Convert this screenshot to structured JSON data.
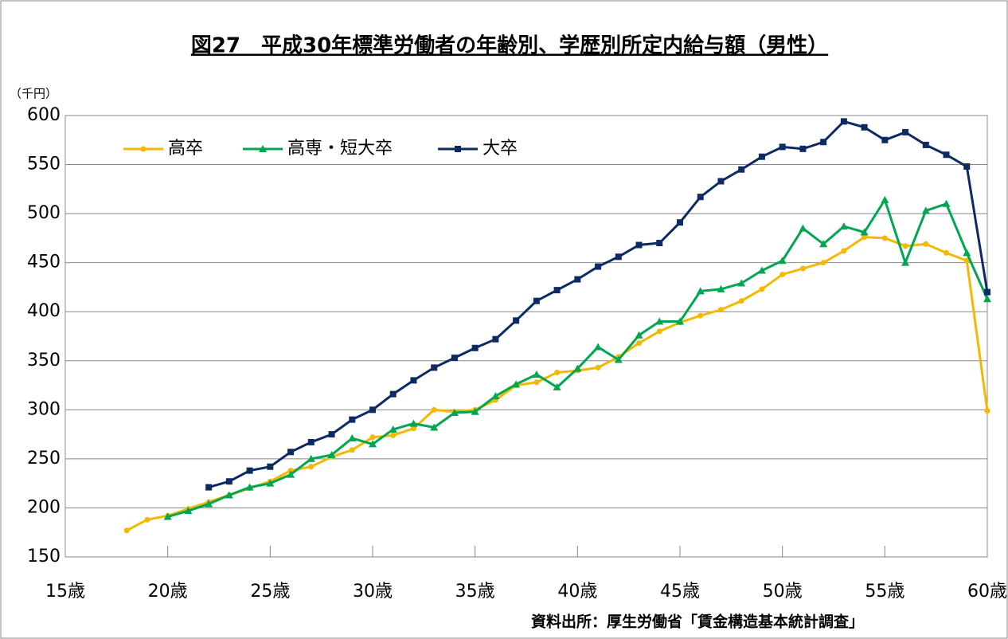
{
  "chart_data": {
    "type": "line",
    "title": "図27　平成30年標準労働者の年齢別、学歴別所定内給与額（男性）",
    "y_unit": "（千円）",
    "source": "資料出所：厚生労働省「賃金構造基本統計調査」",
    "x": [
      18,
      19,
      20,
      21,
      22,
      23,
      24,
      25,
      26,
      27,
      28,
      29,
      30,
      31,
      32,
      33,
      34,
      35,
      36,
      37,
      38,
      39,
      40,
      41,
      42,
      43,
      44,
      45,
      46,
      47,
      48,
      49,
      50,
      51,
      52,
      53,
      54,
      55,
      56,
      57,
      58,
      59,
      60
    ],
    "series": [
      {
        "name": "高卒",
        "color": "#f5b800",
        "marker": "circle",
        "values": [
          177,
          188,
          192,
          199,
          206,
          213,
          220,
          227,
          238,
          242,
          252,
          259,
          272,
          274,
          281,
          300,
          298,
          300,
          310,
          325,
          328,
          338,
          340,
          343,
          354,
          368,
          380,
          389,
          396,
          402,
          411,
          423,
          438,
          444,
          450,
          462,
          476,
          475,
          467,
          469,
          460,
          452,
          299
        ]
      },
      {
        "name": "高専・短大卒",
        "color": "#00a650",
        "marker": "triangle",
        "values": [
          null,
          null,
          191,
          197,
          204,
          213,
          221,
          225,
          234,
          250,
          254,
          271,
          265,
          280,
          286,
          282,
          297,
          298,
          314,
          326,
          336,
          323,
          342,
          364,
          351,
          376,
          390,
          390,
          421,
          423,
          429,
          442,
          452,
          485,
          469,
          487,
          481,
          514,
          450,
          503,
          510,
          460,
          413
        ]
      },
      {
        "name": "大卒",
        "color": "#0d2a63",
        "marker": "square",
        "values": [
          null,
          null,
          null,
          null,
          221,
          227,
          238,
          242,
          257,
          267,
          275,
          290,
          300,
          316,
          330,
          343,
          353,
          363,
          372,
          391,
          411,
          422,
          433,
          446,
          456,
          468,
          470,
          491,
          517,
          533,
          545,
          558,
          568,
          566,
          573,
          594,
          588,
          575,
          583,
          570,
          560,
          548,
          420
        ]
      }
    ],
    "xlim": [
      15,
      60
    ],
    "xticks": [
      {
        "value": 15,
        "label": "15歳"
      },
      {
        "value": 20,
        "label": "20歳"
      },
      {
        "value": 25,
        "label": "25歳"
      },
      {
        "value": 30,
        "label": "30歳"
      },
      {
        "value": 35,
        "label": "35歳"
      },
      {
        "value": 40,
        "label": "40歳"
      },
      {
        "value": 45,
        "label": "45歳"
      },
      {
        "value": 50,
        "label": "50歳"
      },
      {
        "value": 55,
        "label": "55歳"
      },
      {
        "value": 60,
        "label": "60歳"
      }
    ],
    "ylim": [
      150,
      600
    ],
    "yticks": [
      150,
      200,
      250,
      300,
      350,
      400,
      450,
      500,
      550,
      600
    ],
    "grid": true,
    "legend": "top-left"
  }
}
